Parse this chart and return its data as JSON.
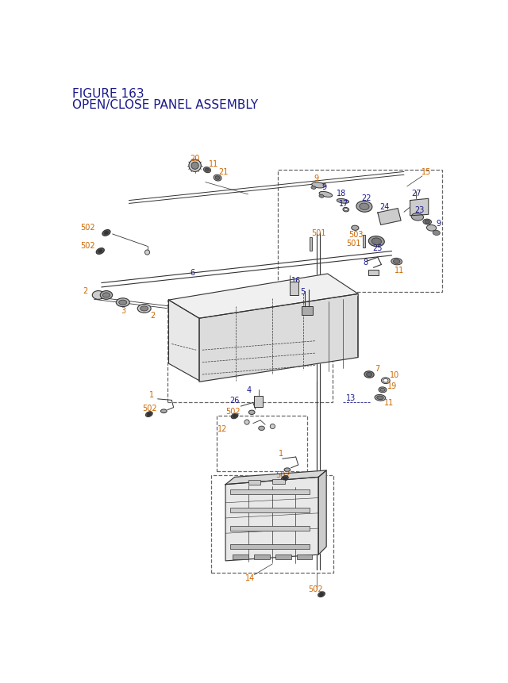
{
  "title_line1": "FIGURE 163",
  "title_line2": "OPEN/CLOSE PANEL ASSEMBLY",
  "title_color": "#1a1a8c",
  "title_fontsize": 11,
  "bg_color": "#ffffff",
  "lc": "#cc6600",
  "bc": "#1a1a8c",
  "bk": "#333333",
  "dc": "#666666"
}
